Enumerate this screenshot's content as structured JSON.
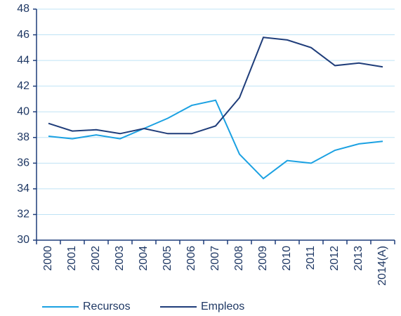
{
  "chart_data": {
    "type": "line",
    "categories": [
      "2000",
      "2001",
      "2002",
      "2003",
      "2004",
      "2005",
      "2006",
      "2007",
      "2008",
      "2009",
      "2010",
      "2011",
      "2012",
      "2013",
      "2014(A)"
    ],
    "series": [
      {
        "name": "Recursos",
        "color": "#1ba1e2",
        "values": [
          38.1,
          37.9,
          38.2,
          37.9,
          38.7,
          39.5,
          40.5,
          40.9,
          36.7,
          34.8,
          36.2,
          36.0,
          37.0,
          37.5,
          37.7
        ]
      },
      {
        "name": "Empleos",
        "color": "#1f3d7a",
        "values": [
          39.1,
          38.5,
          38.6,
          38.3,
          38.7,
          38.3,
          38.3,
          38.9,
          41.1,
          45.8,
          45.6,
          45.0,
          43.6,
          43.8,
          43.5
        ]
      }
    ],
    "ylim": [
      30,
      48
    ],
    "yticks": [
      30,
      32,
      34,
      36,
      38,
      40,
      42,
      44,
      46,
      48
    ],
    "grid": true
  }
}
